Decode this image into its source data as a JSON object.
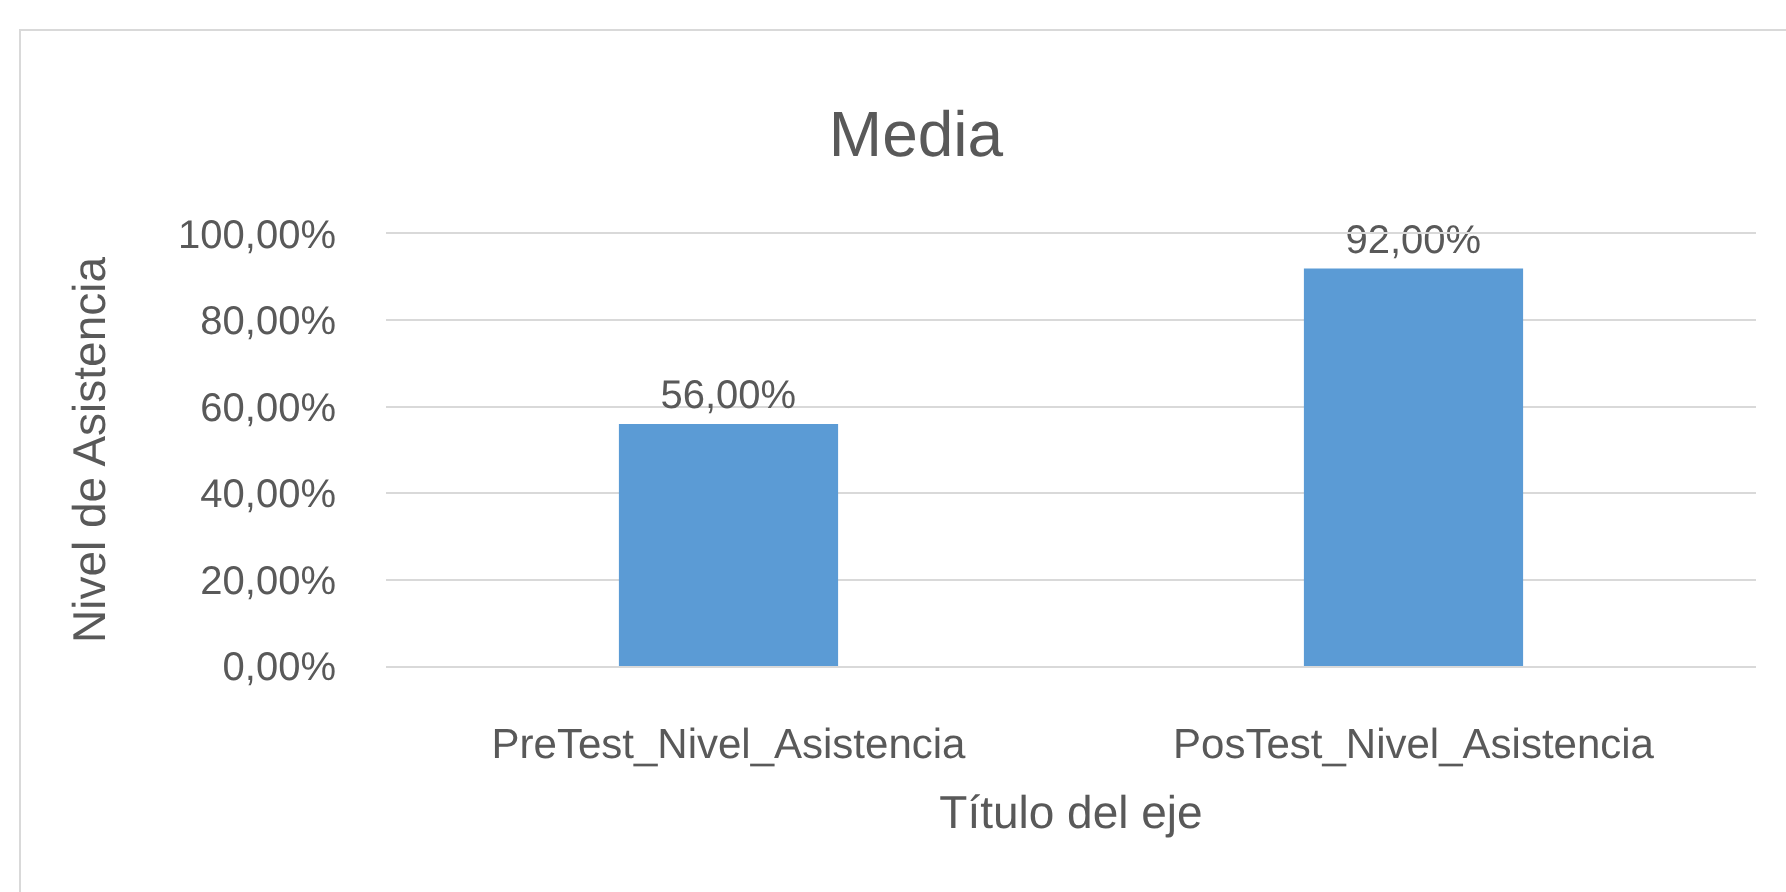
{
  "chart_data": {
    "type": "bar",
    "title": "Media",
    "xlabel": "Título del eje",
    "ylabel": "Nivel de Asistencia",
    "categories": [
      "PreTest_Nivel_Asistencia",
      "PosTest_Nivel_Asistencia"
    ],
    "values": [
      56,
      92
    ],
    "color": "#5b9bd5",
    "value_labels": [
      "56,00%",
      "92,00%"
    ],
    "ylim": [
      0,
      100
    ],
    "yticks": [
      {
        "value": 0,
        "label": "0,00%"
      },
      {
        "value": 20,
        "label": "20,00%"
      },
      {
        "value": 40,
        "label": "40,00%"
      },
      {
        "value": 60,
        "label": "60,00%"
      },
      {
        "value": 80,
        "label": "80,00%"
      },
      {
        "value": 100,
        "label": "100,00%"
      }
    ],
    "grid": "y"
  }
}
